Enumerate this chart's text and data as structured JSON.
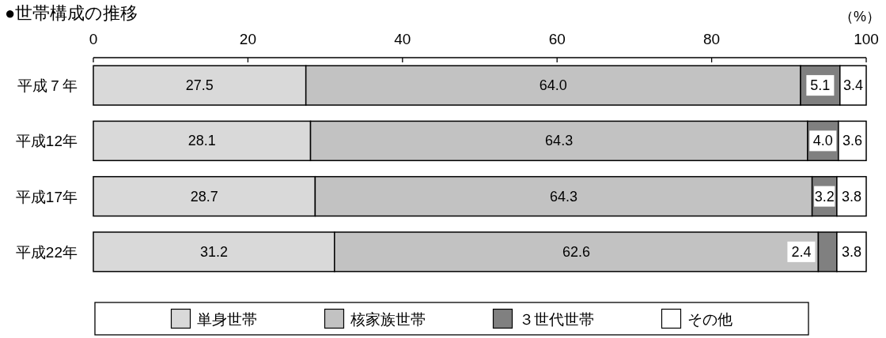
{
  "chart_data": {
    "type": "bar",
    "orientation": "horizontal",
    "stacked": true,
    "title": "●世帯構成の推移",
    "xlabel": "（%）",
    "categories": [
      "平成７年",
      "平成12年",
      "平成17年",
      "平成22年"
    ],
    "series": [
      {
        "name": "単身世帯",
        "color": "#d9d9d9",
        "values": [
          27.5,
          28.1,
          28.7,
          31.2
        ],
        "value_labels": [
          "27.5",
          "28.1",
          "28.7",
          "31.2"
        ]
      },
      {
        "name": "核家族世帯",
        "color": "#c2c2c2",
        "values": [
          64.0,
          64.3,
          64.3,
          62.6
        ],
        "value_labels": [
          "64.0",
          "64.3",
          "64.3",
          "62.6"
        ]
      },
      {
        "name": "３世代世帯",
        "color": "#808080",
        "values": [
          5.1,
          4.0,
          3.2,
          2.4
        ],
        "value_labels": [
          "5.1",
          "4.0",
          "3.2",
          "2.4"
        ]
      },
      {
        "name": "その他",
        "color": "#ffffff",
        "values": [
          3.4,
          3.6,
          3.8,
          3.8
        ],
        "value_labels": [
          "3.4",
          "3.6",
          "3.8",
          "3.8"
        ]
      }
    ],
    "xlim": [
      0,
      100
    ],
    "xticks": [
      0,
      20,
      40,
      60,
      80,
      100
    ],
    "legend": "bottom"
  }
}
